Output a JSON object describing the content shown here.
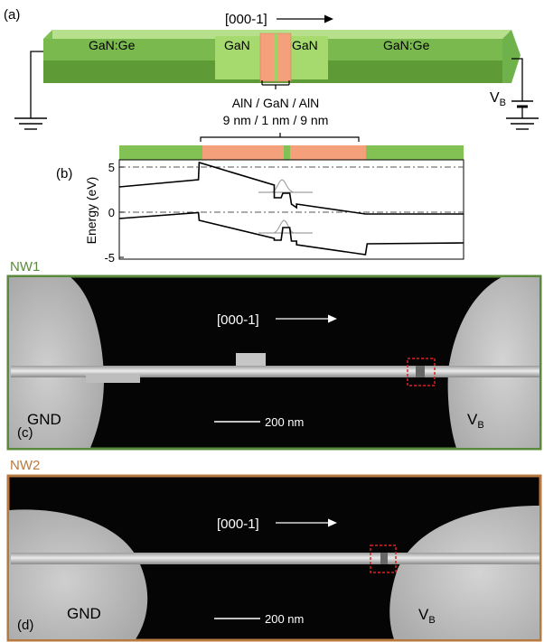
{
  "panel_a": {
    "label": "(a)",
    "direction": "[000-1]",
    "segments": [
      "GaN:Ge",
      "GaN",
      "GaN",
      "GaN:Ge"
    ],
    "heterostructure": "AlN / GaN / AlN",
    "thicknesses": "9 nm / 1 nm / 9 nm",
    "bias_main": "V",
    "bias_sub": "B"
  },
  "panel_b": {
    "label": "(b)",
    "ylabel": "Energy (eV)",
    "yticks": [
      "5",
      "0",
      "-5"
    ]
  },
  "panel_c": {
    "header": "NW1",
    "label": "(c)",
    "direction": "[000-1]",
    "gnd": "GND",
    "bias_main": "V",
    "bias_sub": "B",
    "scale": "200 nm"
  },
  "panel_d": {
    "header": "NW2",
    "label": "(d)",
    "direction": "[000-1]",
    "gnd": "GND",
    "bias_main": "V",
    "bias_sub": "B",
    "scale": "200 nm"
  },
  "chart_data": {
    "type": "line",
    "ylabel": "Energy (eV)",
    "ylim": [
      -5.3,
      5.7
    ],
    "xlim": [
      0,
      100
    ],
    "yticks": [
      5,
      0,
      -5
    ],
    "series": [
      {
        "x": [
          0,
          23,
          23.2,
          45,
          45,
          47,
          47.5,
          49.5,
          50,
          51.5,
          51.5,
          71.5,
          72,
          100
        ],
        "y": [
          2.7,
          3.5,
          5.4,
          2.9,
          1.5,
          1.5,
          2.0,
          2.0,
          0.8,
          0.4,
          0.8,
          -0.3,
          -0.3,
          -0.3
        ]
      },
      {
        "x": [
          0,
          23,
          23.2,
          45,
          45,
          47,
          47.5,
          49.5,
          50,
          51.5,
          51.5,
          71.5,
          72,
          100
        ],
        "y": [
          -0.8,
          -0.15,
          -1.0,
          -3.0,
          -3.2,
          -3.2,
          -1.8,
          -1.8,
          -3.3,
          -3.3,
          -3.7,
          -4.8,
          -3.6,
          -3.5
        ]
      }
    ]
  },
  "colors": {
    "gan_ge_top": "#82c254",
    "gan_ge_front": "#5e9a36",
    "gan_light": "#a6da6e",
    "aln": "#f4a07a",
    "nw1_frame": "#5a8a3c",
    "nw2_frame": "#b8793e"
  }
}
